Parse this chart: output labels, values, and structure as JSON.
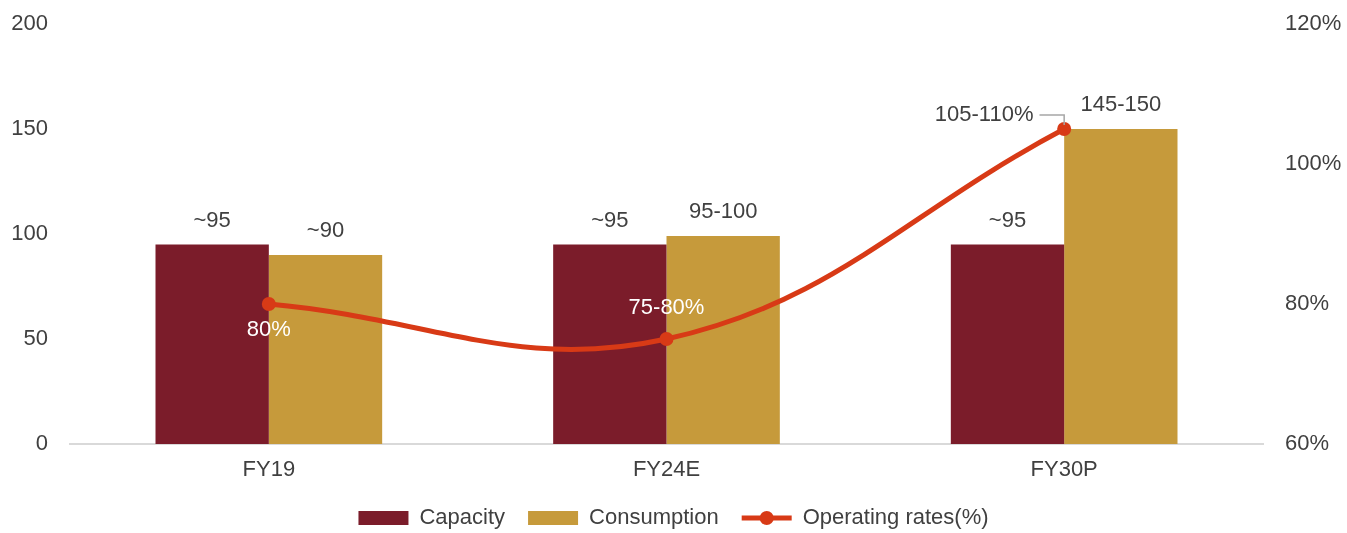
{
  "chart_data": {
    "type": "bar",
    "categories": [
      "FY19",
      "FY24E",
      "FY30P"
    ],
    "series": [
      {
        "name": "Capacity",
        "color": "#7b1c2a",
        "values": [
          95,
          95,
          95
        ],
        "value_labels": [
          "~95",
          "~95",
          "~95"
        ]
      },
      {
        "name": "Consumption",
        "color": "#c69a3b",
        "values": [
          90,
          99,
          150
        ],
        "value_labels": [
          "~90",
          "95-100",
          "145-150"
        ]
      },
      {
        "name": "Operating rates(%)",
        "type": "line",
        "axis": "y2",
        "color": "#d83a16",
        "values": [
          80,
          75,
          105
        ],
        "value_labels": [
          "80%",
          "75-80%",
          "105-110%"
        ]
      }
    ],
    "ylim": [
      0,
      200
    ],
    "yticks": [
      0,
      50,
      100,
      150,
      200
    ],
    "y2lim": [
      60,
      120
    ],
    "y2ticks": [
      {
        "value": 60,
        "label": "60%"
      },
      {
        "value": 80,
        "label": "80%"
      },
      {
        "value": 100,
        "label": "100%"
      },
      {
        "value": 120,
        "label": "120%"
      }
    ],
    "grid": false,
    "legend": "bottom",
    "marker": "circle"
  }
}
